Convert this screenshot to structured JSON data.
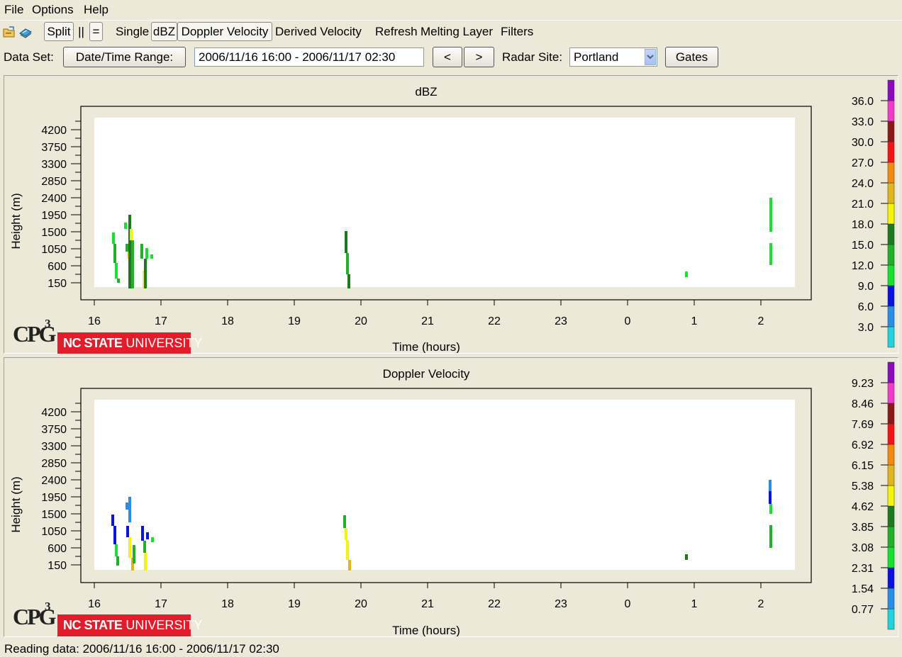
{
  "menu": {
    "file": "File",
    "options": "Options",
    "help": "Help"
  },
  "toolbar": {
    "icons": [
      "open-folder-icon",
      "book-icon"
    ],
    "split": "Split",
    "side_by_side": "||",
    "stacked": "=",
    "single": "Single",
    "dbz": "dBZ",
    "doppler": "Doppler Velocity",
    "derived": "Derived Velocity",
    "refresh": "Refresh",
    "melting": "Melting Layer",
    "filters": "Filters"
  },
  "dataset": {
    "label": "Data Set:",
    "range_button": "Date/Time Range:",
    "range_value": "2006/11/16 16:00 - 2006/11/17 02:30",
    "prev": "<",
    "next": ">",
    "radar_label": "Radar Site:",
    "radar_value": "Portland",
    "gates": "Gates"
  },
  "colors": {
    "scale": [
      "#22d3dc",
      "#2a8de6",
      "#0a12e0",
      "#18e030",
      "#22b02a",
      "#1e7a20",
      "#f5f50a",
      "#e0b51e",
      "#f08a10",
      "#f01414",
      "#b0200c",
      "#8a1a1a",
      "#f03cc8",
      "#8a0abc"
    ]
  },
  "logo": {
    "cpg": "CPG",
    "superscript": "3",
    "nc_state_bold": "NC STATE",
    "nc_state_light": "UNIVERSITY"
  },
  "chart_data": [
    {
      "type": "heatmap",
      "title": "dBZ",
      "xlabel": "Time (hours)",
      "ylabel": "Height (m)",
      "x_ticks": [
        "16",
        "17",
        "18",
        "19",
        "20",
        "21",
        "22",
        "23",
        "0",
        "1",
        "2"
      ],
      "y_ticks": [
        "150",
        "600",
        "1050",
        "1500",
        "1950",
        "2400",
        "2850",
        "3300",
        "3750",
        "4200"
      ],
      "colorbar_labels": [
        "3.0",
        "6.0",
        "9.0",
        "12.0",
        "15.0",
        "18.0",
        "21.0",
        "24.0",
        "27.0",
        "30.0",
        "33.0",
        "36.0"
      ]
    },
    {
      "type": "heatmap",
      "title": "Doppler Velocity",
      "xlabel": "Time (hours)",
      "ylabel": "Height (m)",
      "x_ticks": [
        "16",
        "17",
        "18",
        "19",
        "20",
        "21",
        "22",
        "23",
        "0",
        "1",
        "2"
      ],
      "y_ticks": [
        "150",
        "600",
        "1050",
        "1500",
        "1950",
        "2400",
        "2850",
        "3300",
        "3750",
        "4200"
      ],
      "colorbar_labels": [
        "0.77",
        "1.54",
        "2.31",
        "3.08",
        "3.85",
        "4.62",
        "5.38",
        "6.15",
        "6.92",
        "7.69",
        "8.46",
        "9.23"
      ]
    }
  ],
  "status": "Reading data: 2006/11/16 16:00 - 2006/11/17 02:30"
}
